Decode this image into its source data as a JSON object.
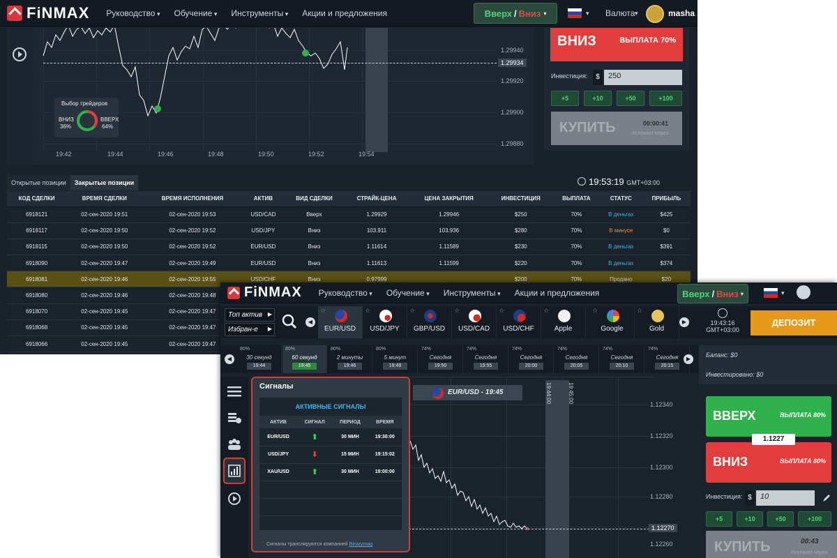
{
  "back": {
    "logo": "FiNMAX",
    "menu": [
      "Руководство",
      "Обучение",
      "Инструменты",
      "Акции и предложения"
    ],
    "updown": {
      "up": "Вверх",
      "sep": "/",
      "down": "Вниз"
    },
    "currency": "Валюта",
    "user": "masha",
    "chart": {
      "y_ticks": [
        "1.29940",
        "1.29920",
        "1.29900",
        "1.29880"
      ],
      "current_price": "1.29934",
      "x_ticks": [
        "19:42",
        "19:44",
        "19:46",
        "19:48",
        "19:50",
        "19:52",
        "19:54"
      ]
    },
    "traders": {
      "title": "Выбор трейдеров",
      "down_label": "ВНИЗ",
      "down_pct": "36%",
      "up_label": "ВВЕРХ",
      "up_pct": "64%",
      "down_frac": 0.36
    },
    "trade": {
      "down_label": "ВНИЗ",
      "payout": "ВЫПЛАТА 70%",
      "investment_label": "Инвестиция:",
      "currency_symbol": "$",
      "investment_value": "250",
      "quick": [
        "+5",
        "+10",
        "+50",
        "+100"
      ],
      "buy_label": "КУПИТЬ",
      "timer": "00:00:41",
      "expires": "Истекает через"
    },
    "tabs": [
      "Открытые позиции",
      "Закрытые позиции"
    ],
    "clock": {
      "time": "19:53:19",
      "tz": "GMT+03:00"
    },
    "table": {
      "headers": [
        "КОД СДЕЛКИ",
        "ВРЕМЯ СДЕЛКИ",
        "ВРЕМЯ ИСПОЛНЕНИЯ",
        "АКТИВ",
        "ВИД СДЕЛКИ",
        "СТРАЙК-ЦЕНА",
        "ЦЕНА ЗАКРЫТИЯ",
        "ИНВЕСТИЦИЯ",
        "ВЫПЛАТА",
        "СТАТУС",
        "ПРИБЫЛЬ"
      ],
      "rows": [
        [
          "6918121",
          "02-сен-2020 19:51",
          "02-сен-2020 19:53",
          "USD/CAD",
          "Вверх",
          "1.29929",
          "1.29946",
          "$250",
          "70%",
          "В деньгах",
          "$425"
        ],
        [
          "6918117",
          "02-сен-2020 19:50",
          "02-сен-2020 19:52",
          "USD/JPY",
          "Вниз",
          "103.911",
          "103.936",
          "$280",
          "70%",
          "В минусе",
          "$0"
        ],
        [
          "6918115",
          "02-сен-2020 19:50",
          "02-сен-2020 19:52",
          "EUR/USD",
          "Вниз",
          "1.11614",
          "1.11589",
          "$230",
          "70%",
          "В деньгах",
          "$391"
        ],
        [
          "6918090",
          "02-сен-2020 19:47",
          "02-сен-2020 19:49",
          "EUR/USD",
          "Вниз",
          "1.11613",
          "1.11599",
          "$220",
          "70%",
          "В деньгах",
          "$374"
        ],
        [
          "6918081",
          "02-сен-2020 19:46",
          "02-сен-2020 19:55",
          "USD/CHF",
          "Вниз",
          "0.97999",
          "",
          "$200",
          "70%",
          "Продано",
          "$20"
        ],
        [
          "6918080",
          "02-сен-2020 19:46",
          "02-сен-2020 19:48",
          "",
          "",
          "",
          "",
          "",
          "",
          "",
          ""
        ],
        [
          "6918070",
          "02-сен-2020 19:45",
          "02-сен-2020 19:47",
          "",
          "",
          "",
          "",
          "",
          "",
          "",
          ""
        ],
        [
          "6918068",
          "02-сен-2020 19:45",
          "02-сен-2020 19:47",
          "",
          "",
          "",
          "",
          "",
          "",
          "",
          ""
        ],
        [
          "6918066",
          "02-сен-2020 19:45",
          "02-сен-2020 19:47",
          "",
          "",
          "",
          "",
          "",
          "",
          "",
          ""
        ]
      ],
      "highlight_row": 4
    }
  },
  "front": {
    "logo": "FiNMAX",
    "menu": [
      "Руководство",
      "Обучение",
      "Инструменты",
      "Акции и предложения"
    ],
    "updown": {
      "up": "Вверх",
      "sep": "/",
      "down": "Вниз"
    },
    "top_active": "Топ актив",
    "favorites": "Избран-е",
    "assets": [
      "EUR/USD",
      "USD/JPY",
      "GBP/USD",
      "USD/CAD",
      "USD/CHF",
      "Apple",
      "Google",
      "Gold"
    ],
    "clock": {
      "time": "19:43:16",
      "tz": "GMT+03:00"
    },
    "deposit": "ДЕПОЗИТ",
    "time_slots": [
      {
        "pct": "80%",
        "label": "30 секунд",
        "time": "19:44"
      },
      {
        "pct": "80%",
        "label": "60 секунд",
        "time": "19:45"
      },
      {
        "pct": "80%",
        "label": "2 минуты",
        "time": "19:46"
      },
      {
        "pct": "80%",
        "label": "5 минут",
        "time": "19:49"
      },
      {
        "pct": "74%",
        "label": "Сегодня",
        "time": "19:50"
      },
      {
        "pct": "74%",
        "label": "Сегодня",
        "time": "19:55"
      },
      {
        "pct": "74%",
        "label": "Сегодня",
        "time": "20:00"
      },
      {
        "pct": "74%",
        "label": "Сегодня",
        "time": "20:05"
      },
      {
        "pct": "74%",
        "label": "Сегодня",
        "time": "20:10"
      },
      {
        "pct": "74%",
        "label": "Сегодня",
        "time": "20:15"
      }
    ],
    "balance": "Баланс: $0",
    "invested": "Инвестировано: $0",
    "signals": {
      "title": "Сигналы",
      "box_title": "АКТИВНЫЕ СИГНАЛЫ",
      "headers": [
        "АКТИВ",
        "СИГНАЛ",
        "ПЕРИОД",
        "ВРЕМЯ"
      ],
      "rows": [
        {
          "asset": "EUR/USD",
          "dir": "up",
          "period": "30 МИН",
          "time": "19:30:00"
        },
        {
          "asset": "USD/JPY",
          "dir": "down",
          "period": "15 МИН",
          "time": "19:15:02"
        },
        {
          "asset": "XAU/USD",
          "dir": "up",
          "period": "30 МИН",
          "time": "19:00:00"
        }
      ],
      "footer": "Сигналы транслируются компанией",
      "company": "Binarymag"
    },
    "pair_label": "EUR/USD - 19:45",
    "chart": {
      "y_ticks": [
        "1.12340",
        "1.12320",
        "1.12300",
        "1.12280",
        "1.12260"
      ],
      "current_price": "1.12270",
      "v_labels": [
        "19:44:00",
        "19:45:00"
      ]
    },
    "trade": {
      "up_label": "ВВЕРХ",
      "up_payout": "ВЫПЛАТА 80%",
      "rate": "1.1227",
      "down_label": "ВНИЗ",
      "down_payout": "ВЫПЛАТА 80%",
      "investment_label": "Инвестиция:",
      "currency_symbol": "$",
      "investment_value": "10",
      "quick": [
        "+5",
        "+10",
        "+50",
        "+100"
      ],
      "buy_label": "КУПИТЬ",
      "timer": "00:43",
      "expires": "Истекает через"
    }
  }
}
